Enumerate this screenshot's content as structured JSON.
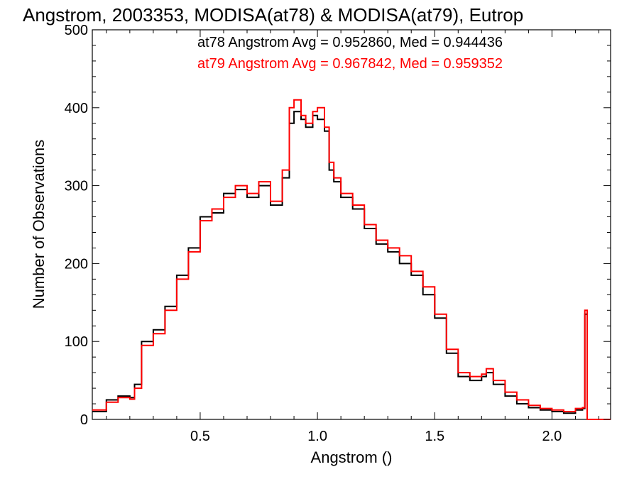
{
  "chart_data": {
    "type": "line",
    "title": "Angstrom, 2003353, MODISA(at78) & MODISA(at79), Eutrop",
    "xlabel": "Angstrom ()",
    "ylabel": "Number of Observations",
    "xlim": [
      0.04,
      2.25
    ],
    "ylim": [
      0,
      500
    ],
    "x_ticks": [
      "0.5",
      "1.0",
      "1.5",
      "2.0"
    ],
    "y_ticks": [
      "0",
      "100",
      "200",
      "300",
      "400",
      "500"
    ],
    "grid": false,
    "legend_position": "top-right",
    "annotations": [
      {
        "text": "at78 Angstrom Avg = 0.952860, Med = 0.944436",
        "color": "#000000"
      },
      {
        "text": "at79 Angstrom Avg = 0.967842, Med = 0.959352",
        "color": "#ff0000"
      }
    ],
    "series": [
      {
        "color": "#000000",
        "step": "histogram",
        "x": [
          0.04,
          0.1,
          0.15,
          0.2,
          0.22,
          0.25,
          0.3,
          0.35,
          0.4,
          0.45,
          0.5,
          0.55,
          0.6,
          0.65,
          0.7,
          0.75,
          0.8,
          0.85,
          0.88,
          0.9,
          0.93,
          0.95,
          0.98,
          1.0,
          1.03,
          1.05,
          1.07,
          1.1,
          1.15,
          1.2,
          1.25,
          1.3,
          1.35,
          1.4,
          1.45,
          1.5,
          1.55,
          1.6,
          1.65,
          1.7,
          1.72,
          1.75,
          1.8,
          1.85,
          1.9,
          1.95,
          2.0,
          2.05,
          2.1,
          2.13,
          2.14,
          2.15,
          2.25
        ],
        "y": [
          10,
          25,
          30,
          28,
          45,
          100,
          115,
          145,
          185,
          220,
          260,
          265,
          290,
          295,
          285,
          300,
          275,
          310,
          380,
          395,
          385,
          375,
          390,
          385,
          370,
          320,
          305,
          285,
          270,
          245,
          225,
          215,
          200,
          185,
          160,
          130,
          85,
          55,
          50,
          55,
          60,
          45,
          30,
          20,
          15,
          12,
          10,
          8,
          12,
          14,
          135,
          0,
          0
        ]
      },
      {
        "color": "#ff0000",
        "step": "histogram",
        "x": [
          0.04,
          0.1,
          0.15,
          0.2,
          0.22,
          0.25,
          0.3,
          0.35,
          0.4,
          0.45,
          0.5,
          0.55,
          0.6,
          0.65,
          0.7,
          0.75,
          0.8,
          0.85,
          0.88,
          0.9,
          0.93,
          0.95,
          0.98,
          1.0,
          1.03,
          1.05,
          1.07,
          1.1,
          1.15,
          1.2,
          1.25,
          1.3,
          1.35,
          1.4,
          1.45,
          1.5,
          1.55,
          1.6,
          1.65,
          1.7,
          1.72,
          1.75,
          1.8,
          1.85,
          1.9,
          1.95,
          2.0,
          2.05,
          2.1,
          2.13,
          2.14,
          2.15,
          2.25
        ],
        "y": [
          12,
          22,
          28,
          26,
          40,
          95,
          110,
          140,
          180,
          215,
          255,
          270,
          285,
          300,
          290,
          305,
          280,
          320,
          400,
          410,
          390,
          380,
          395,
          400,
          375,
          330,
          310,
          290,
          275,
          250,
          230,
          220,
          210,
          190,
          170,
          135,
          90,
          60,
          55,
          58,
          65,
          50,
          35,
          25,
          18,
          14,
          12,
          10,
          14,
          15,
          140,
          0,
          0
        ]
      }
    ]
  }
}
